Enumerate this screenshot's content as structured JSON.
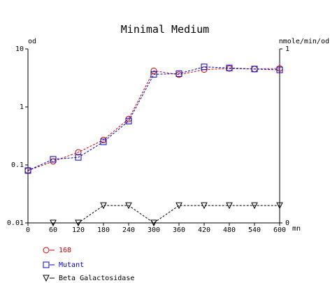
{
  "chart_data": {
    "type": "line",
    "title": "Minimal Medium",
    "left_axis": {
      "label": "od",
      "scale": "log",
      "range": [
        0.01,
        10
      ],
      "ticks": [
        {
          "value": 0.01,
          "label": "0.01"
        },
        {
          "value": 0.1,
          "label": "0.1"
        },
        {
          "value": 1,
          "label": "1"
        },
        {
          "value": 10,
          "label": "10"
        }
      ]
    },
    "right_axis": {
      "label": "nmole/min/od",
      "scale": "linear",
      "range": [
        0,
        1
      ],
      "ticks": [
        {
          "value": 0,
          "label": "0"
        },
        {
          "value": 1,
          "label": "1"
        }
      ]
    },
    "x_axis": {
      "unit": "mn",
      "range": [
        0,
        600
      ],
      "ticks": [
        0,
        60,
        120,
        180,
        240,
        300,
        360,
        420,
        480,
        540,
        600
      ]
    },
    "grid": false,
    "legend_position": "bottom-left",
    "series": [
      {
        "name": "168",
        "axis": "left",
        "marker": "circle",
        "color": "#cc0000",
        "x": [
          0,
          60,
          120,
          180,
          240,
          300,
          360,
          420,
          480,
          540,
          600
        ],
        "values": [
          0.08,
          0.115,
          0.165,
          0.27,
          0.62,
          4.2,
          3.6,
          4.4,
          4.6,
          4.5,
          4.6
        ]
      },
      {
        "name": "Mutant",
        "axis": "left",
        "marker": "square",
        "color": "#0000cc",
        "x": [
          0,
          60,
          120,
          180,
          240,
          300,
          360,
          420,
          480,
          540,
          600
        ],
        "values": [
          0.08,
          0.125,
          0.135,
          0.25,
          0.57,
          3.65,
          3.75,
          4.9,
          4.7,
          4.5,
          4.35
        ]
      },
      {
        "name": "Beta Galactosidase",
        "axis": "right",
        "marker": "triangle-down",
        "color": "#000000",
        "x": [
          60,
          120,
          180,
          240,
          300,
          360,
          420,
          480,
          540,
          600
        ],
        "values": [
          0,
          0,
          0.1,
          0.1,
          0,
          0.1,
          0.1,
          0.1,
          0.1,
          0.1
        ]
      }
    ]
  }
}
